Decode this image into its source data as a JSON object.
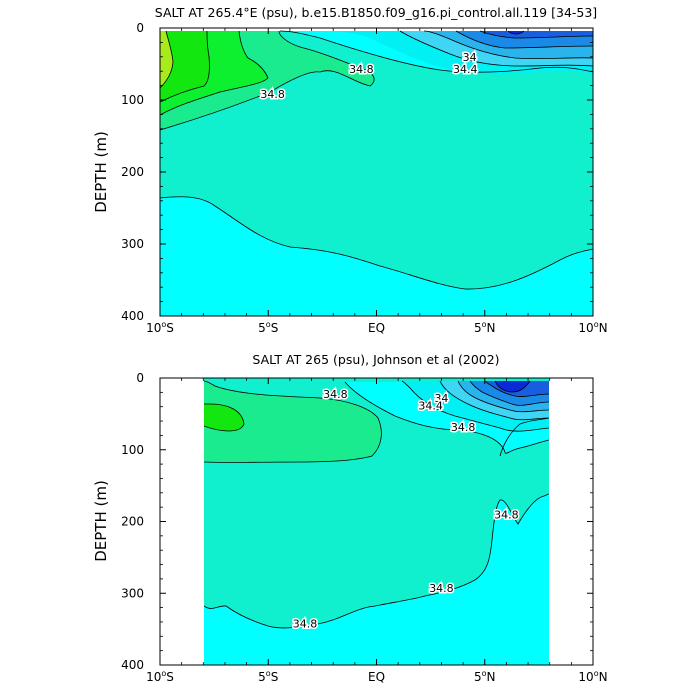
{
  "chart_data": [
    {
      "type": "contour",
      "title": "SALT AT 265.4°E (psu), b.e15.B1850.f09_g16.pi_control.all.119 [34-53]",
      "xlabel": "",
      "ylabel": "DEPTH (m)",
      "xlim": [
        -10,
        10
      ],
      "ylim": [
        400,
        0
      ],
      "x_ticks": [
        "10°S",
        "5°S",
        "EQ",
        "5°N",
        "10°N"
      ],
      "y_ticks": [
        "0",
        "100",
        "200",
        "300",
        "400"
      ],
      "data_extent": [
        -10,
        10
      ],
      "colors": {
        "s33.8": "#0a2ad8",
        "s33.9": "#1a5ee0",
        "s34.0": "#1a8ae8",
        "s34.1": "#2ab4ee",
        "s34.2": "#3ed6f4",
        "s34.4": "#00f0f4",
        "s34.6": "#00ffff",
        "s34.8": "#10f0cf",
        "s35.0": "#1aeb8e",
        "s35.2": "#0cf030",
        "s35.4": "#12e810"
      },
      "contour_labels": [
        {
          "value": "34.8",
          "x": -0.7,
          "y": 57
        },
        {
          "value": "34.8",
          "x": -4.8,
          "y": 92
        },
        {
          "value": "34",
          "x": 4.3,
          "y": 40
        },
        {
          "value": "34.4",
          "x": 4.1,
          "y": 57
        }
      ]
    },
    {
      "type": "contour",
      "title": "SALT AT 265 (psu), Johnson et al (2002)",
      "xlabel": "",
      "ylabel": "DEPTH (m)",
      "xlim": [
        -10,
        10
      ],
      "ylim": [
        400,
        0
      ],
      "x_ticks": [
        "10°S",
        "5°S",
        "EQ",
        "5°N",
        "10°N"
      ],
      "y_ticks": [
        "0",
        "100",
        "200",
        "300",
        "400"
      ],
      "data_extent": [
        -8,
        8
      ],
      "colors": {
        "s33.8": "#0a2ad8",
        "s33.9": "#1a5ee0",
        "s34.0": "#1a8ae8",
        "s34.1": "#2ab4ee",
        "s34.2": "#3ed6f4",
        "s34.4": "#00f0f4",
        "s34.6": "#00ffff",
        "s34.8": "#10f0cf",
        "s35.0": "#1aeb8e",
        "s35.2": "#0cf030",
        "s35.4": "#12e810"
      },
      "contour_labels": [
        {
          "value": "34.8",
          "x": -1.9,
          "y": 22
        },
        {
          "value": "34",
          "x": 3.0,
          "y": 28
        },
        {
          "value": "34.4",
          "x": 2.5,
          "y": 38
        },
        {
          "value": "34.8",
          "x": 4.0,
          "y": 68
        },
        {
          "value": "34.8",
          "x": 6.0,
          "y": 190
        },
        {
          "value": "34.8",
          "x": 3.0,
          "y": 293
        },
        {
          "value": "34.8",
          "x": -3.3,
          "y": 342
        }
      ]
    }
  ]
}
